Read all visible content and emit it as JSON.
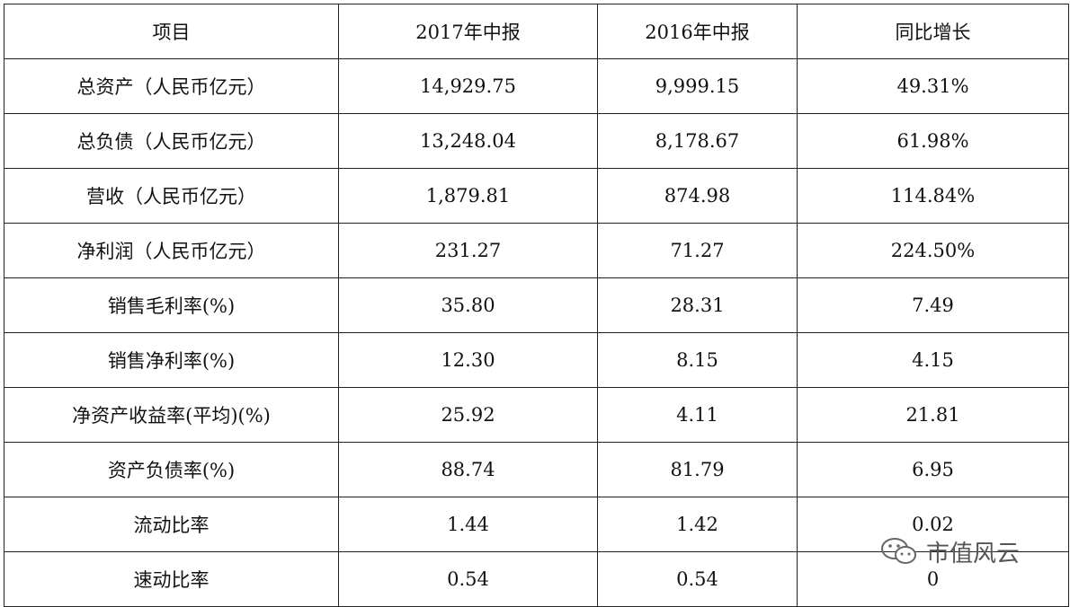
{
  "table": {
    "header": [
      "项目",
      "2017年中报",
      "2016年中报",
      "同比增长"
    ],
    "rows": [
      [
        "总资产（人民币亿元）",
        "14,929.75",
        "9,999.15",
        "49.31%"
      ],
      [
        "总负债（人民币亿元）",
        "13,248.04",
        "8,178.67",
        "61.98%"
      ],
      [
        "营收（人民币亿元）",
        "1,879.81",
        "874.98",
        "114.84%"
      ],
      [
        "净利润（人民币亿元）",
        "231.27",
        "71.27",
        "224.50%"
      ],
      [
        "销售毛利率(%)",
        "35.80",
        "28.31",
        "7.49"
      ],
      [
        "销售净利率(%)",
        "12.30",
        "8.15",
        "4.15"
      ],
      [
        "净资产收益率(平均)(%)",
        "25.92",
        "4.11",
        "21.81"
      ],
      [
        "资产负债率(%)",
        "88.74",
        "81.79",
        "6.95"
      ],
      [
        "流动比率",
        "1.44",
        "1.42",
        "0.02"
      ],
      [
        "速动比率",
        "0.54",
        "0.54",
        "0"
      ]
    ]
  },
  "watermark": "市值风云"
}
